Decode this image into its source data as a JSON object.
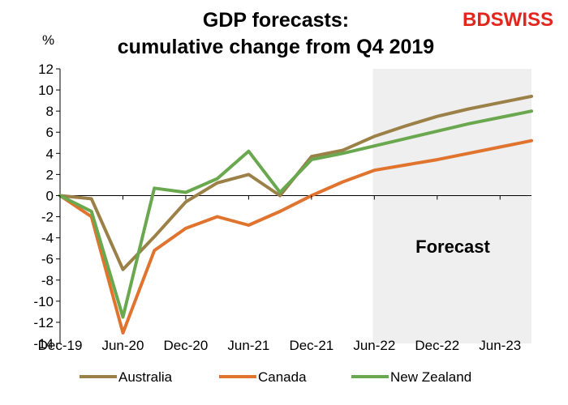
{
  "brand": {
    "part1": "BD",
    "part2": "SWISS",
    "color1": "#e3261c",
    "color2": "#e3261c"
  },
  "chart_data": {
    "type": "line",
    "title_line1": "GDP forecasts:",
    "title_line2": "cumulative change from Q4 2019",
    "ylabel": "%",
    "ylim": [
      -14,
      12
    ],
    "yticks": [
      12,
      10,
      8,
      6,
      4,
      2,
      0,
      -2,
      -4,
      -6,
      -8,
      -10,
      -12,
      -14
    ],
    "x_count": 16,
    "x_labels": [
      {
        "label": "Dec-19",
        "index": 0
      },
      {
        "label": "Jun-20",
        "index": 2
      },
      {
        "label": "Dec-20",
        "index": 4
      },
      {
        "label": "Jun-21",
        "index": 6
      },
      {
        "label": "Dec-21",
        "index": 8
      },
      {
        "label": "Jun-22",
        "index": 10
      },
      {
        "label": "Dec-22",
        "index": 12
      },
      {
        "label": "Jun-23",
        "index": 14
      }
    ],
    "forecast_start_index": 10,
    "forecast_label": "Forecast",
    "forecast_shade": "#efefef",
    "series": [
      {
        "name": "Australia",
        "color": "#9b8048",
        "values": [
          0,
          -0.3,
          -7.0,
          -3.9,
          -0.6,
          1.2,
          2.0,
          0.0,
          3.7,
          4.3,
          5.6,
          6.6,
          7.5,
          8.2,
          8.8,
          9.4
        ]
      },
      {
        "name": "Canada",
        "color": "#e0742f",
        "values": [
          0,
          -2.0,
          -13.0,
          -5.2,
          -3.1,
          -2.0,
          -2.8,
          -1.5,
          0.0,
          1.3,
          2.4,
          2.9,
          3.4,
          4.0,
          4.6,
          5.2
        ]
      },
      {
        "name": "New Zealand",
        "color": "#6aa84f",
        "values": [
          0,
          -1.5,
          -11.5,
          0.7,
          0.3,
          1.6,
          4.2,
          0.3,
          3.4,
          4.0,
          4.7,
          5.4,
          6.1,
          6.8,
          7.4,
          8.0
        ]
      }
    ]
  }
}
